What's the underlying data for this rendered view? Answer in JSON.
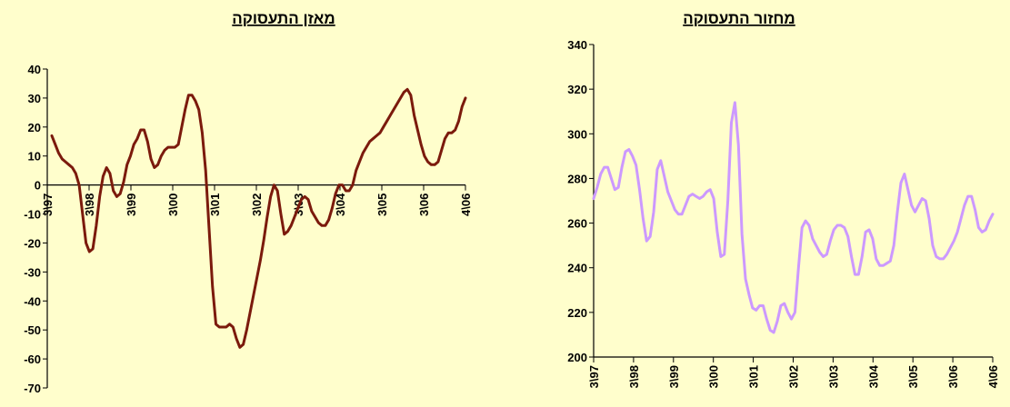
{
  "colors": {
    "background": "#fffecc",
    "axis": "#000000"
  },
  "chart_data": [
    {
      "type": "line",
      "title": "מאזן התעסוקה",
      "xlabel": "",
      "ylabel": "",
      "ylim": [
        -70,
        40
      ],
      "yticks": [
        40,
        30,
        20,
        10,
        0,
        -10,
        -20,
        -30,
        -40,
        -50,
        -60,
        -70
      ],
      "xticks": [
        "3\\97",
        "3\\98",
        "3\\99",
        "3\\00",
        "3\\01",
        "3\\02",
        "3\\03",
        "3\\04",
        "3\\05",
        "3\\06",
        "4\\06"
      ],
      "x_axis_at": 0,
      "grid": false,
      "line_color": "#7b1a0c",
      "series": [
        {
          "values": [
            17,
            14,
            11,
            9,
            8,
            7,
            6,
            4,
            0,
            -10,
            -20,
            -23,
            -22,
            -14,
            -4,
            3,
            6,
            4,
            -2,
            -4,
            -3,
            1,
            7,
            10,
            14,
            16,
            19,
            19,
            15,
            9,
            6,
            7,
            10,
            12,
            13,
            13,
            13,
            14,
            20,
            26,
            31,
            31,
            29,
            26,
            18,
            5,
            -15,
            -35,
            -48,
            -49,
            -49,
            -49,
            -48,
            -49,
            -53,
            -56,
            -55,
            -50,
            -44,
            -38,
            -32,
            -26,
            -19,
            -11,
            -4,
            0,
            -2,
            -10,
            -17,
            -16,
            -14,
            -11,
            -8,
            -5,
            -4,
            -5,
            -9,
            -11,
            -13,
            -14,
            -14,
            -12,
            -8,
            -3,
            0,
            0,
            -2,
            -2,
            0,
            5,
            8,
            11,
            13,
            15,
            16,
            17,
            18,
            20,
            22,
            24,
            26,
            28,
            30,
            32,
            33,
            31,
            24,
            19,
            14,
            10,
            8,
            7,
            7,
            8,
            12,
            16,
            18,
            18,
            19,
            22,
            27,
            30
          ]
        }
      ]
    },
    {
      "type": "line",
      "title": "מחזור התעסוקה",
      "xlabel": "",
      "ylabel": "",
      "ylim": [
        200,
        340
      ],
      "yticks": [
        340,
        320,
        300,
        280,
        260,
        240,
        220,
        200
      ],
      "xticks": [
        "3\\97",
        "3\\98",
        "3\\99",
        "3\\00",
        "3\\01",
        "3\\02",
        "3\\03",
        "3\\04",
        "3\\05",
        "3\\06",
        "4\\06"
      ],
      "grid": false,
      "line_color": "#cc99ff",
      "series": [
        {
          "values": [
            271,
            276,
            282,
            285,
            285,
            280,
            275,
            276,
            285,
            292,
            293,
            290,
            286,
            275,
            262,
            252,
            254,
            265,
            284,
            288,
            281,
            274,
            270,
            266,
            264,
            264,
            268,
            272,
            273,
            272,
            271,
            272,
            274,
            275,
            271,
            256,
            245,
            246,
            270,
            305,
            314,
            295,
            255,
            235,
            228,
            222,
            221,
            223,
            223,
            217,
            212,
            211,
            216,
            223,
            224,
            220,
            217,
            220,
            240,
            258,
            261,
            259,
            253,
            250,
            247,
            245,
            246,
            252,
            257,
            259,
            259,
            258,
            254,
            245,
            237,
            237,
            245,
            256,
            257,
            253,
            244,
            241,
            241,
            242,
            243,
            250,
            265,
            278,
            282,
            275,
            268,
            265,
            268,
            271,
            270,
            262,
            250,
            245,
            244,
            244,
            246,
            249,
            252,
            256,
            262,
            268,
            272,
            272,
            266,
            258,
            256,
            257,
            261,
            264
          ]
        }
      ]
    }
  ]
}
